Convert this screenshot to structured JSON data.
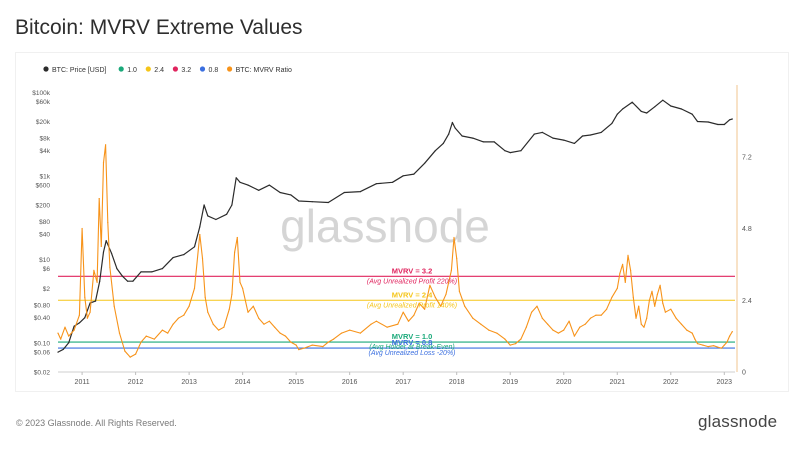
{
  "title": "Bitcoin: MVRV Extreme Values",
  "footer": {
    "copyright": "© 2023 Glassnode. All Rights Reserved.",
    "logo": "glassnode"
  },
  "watermark": "glassnode",
  "colors": {
    "price": "#2b2b2b",
    "mvrv": "#f7931a",
    "l32": "#e0245e",
    "l24": "#f5c518",
    "l10": "#1aa97a",
    "l08": "#3b6fe0"
  },
  "chart_data": {
    "type": "line",
    "title": "Bitcoin: MVRV Extreme Values",
    "legend": [
      {
        "label": "BTC: Price [USD]",
        "color": "#2b2b2b"
      },
      {
        "label": "1.0",
        "color": "#1aa97a"
      },
      {
        "label": "2.4",
        "color": "#f5c518"
      },
      {
        "label": "3.2",
        "color": "#e0245e"
      },
      {
        "label": "0.8",
        "color": "#3b6fe0"
      },
      {
        "label": "BTC: MVRV Ratio",
        "color": "#f7931a"
      }
    ],
    "legend_position": "top-left",
    "x_ticks": [
      "2011",
      "2012",
      "2013",
      "2014",
      "2015",
      "2016",
      "2017",
      "2018",
      "2019",
      "2020",
      "2021",
      "2022",
      "2023"
    ],
    "x_range": [
      2010.55,
      2023.2
    ],
    "y_left": {
      "scale": "log",
      "range": [
        0.02,
        150000
      ],
      "ticks": [
        "$100k",
        "$60k",
        "$20k",
        "$8k",
        "$4k",
        "$1k",
        "$600",
        "$200",
        "$80",
        "$40",
        "$10",
        "$6",
        "$2",
        "$0.80",
        "$0.40",
        "$0.10",
        "$0.06",
        "$0.02"
      ],
      "tick_values": [
        100000,
        60000,
        20000,
        8000,
        4000,
        1000,
        600,
        200,
        80,
        40,
        10,
        6,
        2,
        0.8,
        0.4,
        0.1,
        0.06,
        0.02
      ]
    },
    "y_right": {
      "scale": "linear",
      "range": [
        0,
        9.6
      ],
      "ticks": [
        "0",
        "2.4",
        "4.8",
        "7.2"
      ],
      "tick_values": [
        0,
        2.4,
        4.8,
        7.2
      ]
    },
    "thresholds": [
      {
        "value": 3.2,
        "label": "MVRV = 3.2",
        "sublabel": "(Avg Unrealized Profit 220%)",
        "color": "#e0245e"
      },
      {
        "value": 2.4,
        "label": "MVRV = 2.4",
        "sublabel": "(Avg Unrealized Profit 140%)",
        "color": "#f5c518"
      },
      {
        "value": 1.0,
        "label": "MVRV = 1.0",
        "sublabel": "(Avg Holder at Break-Even)",
        "color": "#1aa97a"
      },
      {
        "value": 0.8,
        "label": "MVRV = 0.8",
        "sublabel": "(Avg Unrealized Loss -20%)",
        "color": "#3b6fe0"
      }
    ],
    "series": [
      {
        "name": "BTC: Price [USD]",
        "axis": "left",
        "x": [
          2010.55,
          2010.65,
          2010.75,
          2010.85,
          2010.95,
          2011.05,
          2011.15,
          2011.25,
          2011.33,
          2011.4,
          2011.45,
          2011.55,
          2011.65,
          2011.75,
          2011.85,
          2011.95,
          2012.1,
          2012.3,
          2012.5,
          2012.7,
          2012.9,
          2013.1,
          2013.2,
          2013.28,
          2013.35,
          2013.5,
          2013.7,
          2013.8,
          2013.88,
          2013.95,
          2014.1,
          2014.3,
          2014.5,
          2014.7,
          2014.9,
          2015.05,
          2015.3,
          2015.6,
          2015.9,
          2016.2,
          2016.5,
          2016.8,
          2017.0,
          2017.2,
          2017.4,
          2017.6,
          2017.75,
          2017.85,
          2017.92,
          2017.97,
          2018.1,
          2018.3,
          2018.5,
          2018.7,
          2018.9,
          2019.0,
          2019.2,
          2019.45,
          2019.6,
          2019.8,
          2020.0,
          2020.2,
          2020.35,
          2020.5,
          2020.7,
          2020.9,
          2021.0,
          2021.1,
          2021.28,
          2021.45,
          2021.55,
          2021.7,
          2021.85,
          2022.0,
          2022.2,
          2022.4,
          2022.5,
          2022.7,
          2022.88,
          2023.0,
          2023.1,
          2023.15
        ],
        "y": [
          0.06,
          0.07,
          0.1,
          0.25,
          0.3,
          0.4,
          0.9,
          1,
          3,
          15,
          28,
          14,
          6,
          4,
          3,
          3,
          5,
          5,
          6,
          11,
          13,
          20,
          60,
          200,
          110,
          90,
          120,
          200,
          900,
          700,
          600,
          450,
          600,
          400,
          350,
          250,
          240,
          230,
          400,
          420,
          650,
          700,
          1000,
          1100,
          2000,
          4000,
          6000,
          10000,
          19000,
          14000,
          9000,
          8000,
          6500,
          6500,
          4000,
          3600,
          4000,
          10000,
          11000,
          8000,
          7200,
          6000,
          9000,
          9500,
          11000,
          18000,
          30000,
          40000,
          58000,
          35000,
          32000,
          45000,
          65000,
          47000,
          40000,
          30000,
          20000,
          19500,
          17000,
          17000,
          22000,
          23000
        ]
      },
      {
        "name": "BTC: MVRV Ratio",
        "axis": "right",
        "x": [
          2010.55,
          2010.6,
          2010.68,
          2010.75,
          2010.85,
          2010.95,
          2011.0,
          2011.05,
          2011.1,
          2011.15,
          2011.22,
          2011.28,
          2011.32,
          2011.36,
          2011.4,
          2011.44,
          2011.48,
          2011.52,
          2011.6,
          2011.7,
          2011.8,
          2011.9,
          2012.0,
          2012.1,
          2012.2,
          2012.35,
          2012.5,
          2012.6,
          2012.7,
          2012.8,
          2012.9,
          2013.0,
          2013.1,
          2013.2,
          2013.25,
          2013.3,
          2013.35,
          2013.45,
          2013.55,
          2013.65,
          2013.75,
          2013.8,
          2013.85,
          2013.9,
          2013.95,
          2014.0,
          2014.1,
          2014.2,
          2014.3,
          2014.4,
          2014.5,
          2014.6,
          2014.7,
          2014.8,
          2014.9,
          2015.0,
          2015.05,
          2015.15,
          2015.3,
          2015.5,
          2015.6,
          2015.7,
          2015.85,
          2016.0,
          2016.2,
          2016.4,
          2016.5,
          2016.7,
          2016.9,
          2017.0,
          2017.1,
          2017.2,
          2017.3,
          2017.4,
          2017.5,
          2017.6,
          2017.7,
          2017.8,
          2017.85,
          2017.9,
          2017.95,
          2018.0,
          2018.05,
          2018.15,
          2018.3,
          2018.45,
          2018.6,
          2018.75,
          2018.9,
          2019.0,
          2019.1,
          2019.2,
          2019.3,
          2019.4,
          2019.5,
          2019.6,
          2019.7,
          2019.8,
          2019.9,
          2020.0,
          2020.1,
          2020.2,
          2020.3,
          2020.4,
          2020.5,
          2020.6,
          2020.7,
          2020.8,
          2020.9,
          2021.0,
          2021.05,
          2021.1,
          2021.15,
          2021.2,
          2021.25,
          2021.3,
          2021.35,
          2021.4,
          2021.45,
          2021.5,
          2021.55,
          2021.6,
          2021.65,
          2021.7,
          2021.75,
          2021.8,
          2021.85,
          2021.9,
          2022.0,
          2022.1,
          2022.2,
          2022.3,
          2022.4,
          2022.45,
          2022.5,
          2022.6,
          2022.7,
          2022.8,
          2022.9,
          2022.95,
          2023.0,
          2023.05,
          2023.1,
          2023.15
        ],
        "y": [
          1.3,
          1.1,
          1.5,
          1.2,
          1.4,
          1.9,
          4.8,
          2.5,
          1.8,
          2.0,
          3.4,
          3.0,
          5.8,
          4.2,
          7.0,
          7.6,
          5.0,
          3.5,
          2.2,
          1.3,
          0.7,
          0.5,
          0.6,
          1.0,
          1.2,
          1.1,
          1.4,
          1.3,
          1.6,
          1.8,
          1.9,
          2.2,
          2.8,
          4.6,
          3.8,
          2.5,
          2.0,
          1.6,
          1.4,
          1.5,
          2.1,
          2.6,
          4.0,
          4.5,
          3.0,
          2.8,
          2.0,
          2.2,
          1.8,
          1.6,
          1.7,
          1.5,
          1.3,
          1.2,
          1.0,
          0.9,
          0.75,
          0.8,
          0.9,
          0.85,
          1.0,
          1.1,
          1.3,
          1.4,
          1.3,
          1.6,
          1.7,
          1.5,
          1.6,
          2.0,
          1.7,
          1.9,
          2.3,
          2.1,
          2.9,
          2.5,
          2.2,
          2.6,
          3.0,
          3.4,
          4.5,
          3.8,
          2.7,
          2.2,
          1.8,
          1.6,
          1.4,
          1.3,
          1.1,
          0.9,
          0.95,
          1.1,
          1.5,
          2.0,
          2.2,
          1.8,
          1.6,
          1.4,
          1.3,
          1.4,
          1.7,
          1.2,
          1.5,
          1.6,
          1.8,
          1.9,
          1.9,
          2.1,
          2.5,
          2.8,
          3.3,
          3.6,
          3.0,
          3.9,
          3.4,
          2.5,
          1.8,
          2.2,
          1.6,
          1.5,
          1.8,
          2.4,
          2.7,
          2.2,
          2.6,
          2.9,
          2.3,
          2.0,
          2.1,
          1.8,
          1.6,
          1.4,
          1.3,
          1.1,
          0.95,
          0.9,
          0.85,
          0.88,
          0.82,
          0.8,
          0.9,
          1.0,
          1.2,
          1.35
        ]
      }
    ]
  }
}
